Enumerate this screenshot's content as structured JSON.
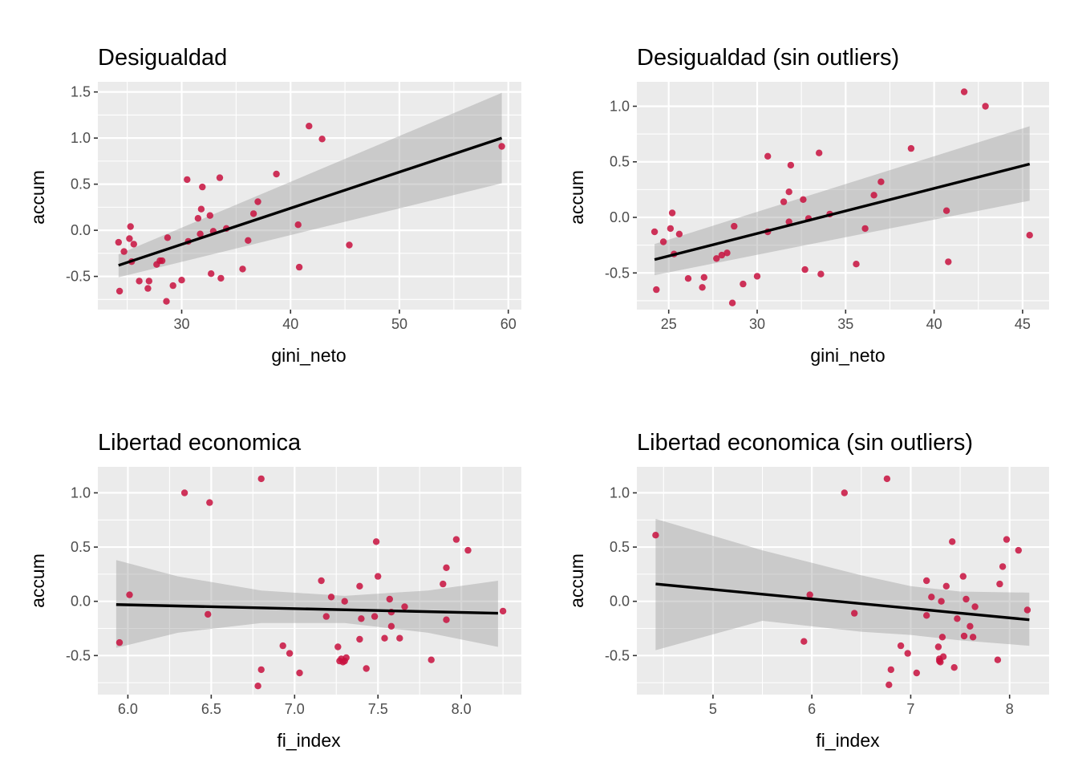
{
  "chart_data": [
    {
      "type": "scatter",
      "title": "Desigualdad",
      "xlabel": "gini_neto",
      "ylabel": "accum",
      "xlim": [
        22.3,
        61.2
      ],
      "ylim": [
        -0.86,
        1.61
      ],
      "x_ticks": [
        30,
        40,
        50,
        60
      ],
      "x_tick_labels": [
        "30",
        "40",
        "50",
        "60"
      ],
      "y_ticks": [
        -0.5,
        0.0,
        0.5,
        1.0,
        1.5
      ],
      "y_tick_labels": [
        "-0.5",
        "0.0",
        "0.5",
        "1.0",
        "1.5"
      ],
      "grid": true,
      "point_color": "#c8103e",
      "points": {
        "x": [
          24.3,
          24.2,
          24.7,
          25.2,
          25.3,
          25.4,
          25.6,
          26.1,
          26.9,
          27.0,
          27.7,
          28.0,
          28.2,
          28.6,
          28.7,
          29.2,
          30.0,
          30.5,
          30.6,
          31.5,
          31.8,
          31.9,
          31.7,
          32.6,
          32.7,
          32.9,
          33.5,
          33.6,
          34.1,
          35.6,
          36.1,
          36.6,
          37.0,
          38.7,
          40.7,
          40.8,
          41.7,
          42.9,
          45.4,
          59.4
        ],
        "y": [
          -0.66,
          -0.13,
          -0.23,
          -0.09,
          0.04,
          -0.34,
          -0.15,
          -0.55,
          -0.63,
          -0.55,
          -0.37,
          -0.33,
          -0.33,
          -0.77,
          -0.08,
          -0.6,
          -0.54,
          0.55,
          -0.12,
          0.13,
          0.23,
          0.47,
          -0.04,
          0.16,
          -0.47,
          -0.01,
          0.57,
          -0.52,
          0.02,
          -0.42,
          -0.11,
          0.18,
          0.31,
          0.61,
          0.06,
          -0.4,
          1.13,
          0.99,
          -0.16,
          0.91
        ]
      },
      "fit": {
        "x": [
          24.2,
          59.4
        ],
        "y": [
          -0.38,
          1.0
        ]
      },
      "band": {
        "x": [
          24.2,
          59.4
        ],
        "upper": [
          -0.26,
          1.49
        ],
        "lower": [
          -0.51,
          0.51
        ]
      }
    },
    {
      "type": "scatter",
      "title": "Desigualdad (sin outliers)",
      "xlabel": "gini_neto",
      "ylabel": "accum",
      "xlim": [
        23.2,
        46.5
      ],
      "ylim": [
        -0.83,
        1.22
      ],
      "x_ticks": [
        25,
        30,
        35,
        40,
        45
      ],
      "x_tick_labels": [
        "25",
        "30",
        "35",
        "40",
        "45"
      ],
      "y_ticks": [
        -0.5,
        0.0,
        0.5,
        1.0
      ],
      "y_tick_labels": [
        "-0.5",
        "0.0",
        "0.5",
        "1.0"
      ],
      "grid": true,
      "point_color": "#c8103e",
      "points": {
        "x": [
          24.3,
          24.2,
          24.7,
          25.1,
          25.2,
          25.3,
          25.6,
          26.1,
          26.9,
          27.0,
          27.7,
          28.0,
          28.3,
          28.6,
          28.7,
          29.2,
          30.0,
          30.6,
          30.6,
          31.5,
          31.8,
          31.9,
          31.8,
          32.6,
          32.7,
          32.9,
          33.5,
          33.6,
          34.1,
          35.6,
          36.1,
          36.6,
          37.0,
          38.7,
          40.7,
          40.8,
          41.7,
          42.9,
          45.4
        ],
        "y": [
          -0.65,
          -0.13,
          -0.22,
          -0.1,
          0.04,
          -0.33,
          -0.15,
          -0.55,
          -0.63,
          -0.54,
          -0.37,
          -0.34,
          -0.32,
          -0.77,
          -0.08,
          -0.6,
          -0.53,
          0.55,
          -0.13,
          0.14,
          0.23,
          0.47,
          -0.04,
          0.16,
          -0.47,
          -0.01,
          0.58,
          -0.51,
          0.03,
          -0.42,
          -0.1,
          0.2,
          0.32,
          0.62,
          0.06,
          -0.4,
          1.13,
          1.0,
          -0.16
        ]
      },
      "fit": {
        "x": [
          24.2,
          45.4
        ],
        "y": [
          -0.38,
          0.48
        ]
      },
      "band": {
        "x": [
          24.2,
          45.4
        ],
        "upper": [
          -0.24,
          0.82
        ],
        "lower": [
          -0.52,
          0.15
        ]
      }
    },
    {
      "type": "scatter",
      "title": "Libertad economica",
      "xlabel": "fi_index",
      "ylabel": "accum",
      "xlim": [
        5.82,
        8.36
      ],
      "ylim": [
        -0.86,
        1.24
      ],
      "x_ticks": [
        6.0,
        6.5,
        7.0,
        7.5,
        8.0
      ],
      "x_tick_labels": [
        "6.0",
        "6.5",
        "7.0",
        "7.5",
        "8.0"
      ],
      "y_ticks": [
        -0.5,
        0.0,
        0.5,
        1.0
      ],
      "y_tick_labels": [
        "-0.5",
        "0.0",
        "0.5",
        "1.0"
      ],
      "grid": true,
      "point_color": "#c8103e",
      "points": {
        "x": [
          5.95,
          6.01,
          6.34,
          6.48,
          6.49,
          6.78,
          6.8,
          6.8,
          6.93,
          6.97,
          7.03,
          7.16,
          7.19,
          7.22,
          7.26,
          7.27,
          7.28,
          7.29,
          7.3,
          7.3,
          7.31,
          7.39,
          7.4,
          7.39,
          7.43,
          7.48,
          7.49,
          7.5,
          7.54,
          7.57,
          7.58,
          7.58,
          7.63,
          7.66,
          7.82,
          7.89,
          7.91,
          7.91,
          7.97,
          8.04,
          8.25
        ],
        "y": [
          -0.38,
          0.06,
          1.0,
          -0.12,
          0.91,
          -0.78,
          -0.63,
          1.13,
          -0.41,
          -0.48,
          -0.66,
          0.19,
          -0.14,
          0.04,
          -0.42,
          -0.55,
          -0.53,
          -0.56,
          0.0,
          -0.55,
          -0.52,
          0.14,
          -0.16,
          -0.35,
          -0.62,
          -0.14,
          0.55,
          0.23,
          -0.34,
          0.02,
          -0.23,
          -0.1,
          -0.34,
          -0.05,
          -0.54,
          0.16,
          0.31,
          -0.17,
          0.57,
          0.47,
          -0.09
        ]
      },
      "fit": {
        "x": [
          5.93,
          8.22
        ],
        "y": [
          -0.03,
          -0.11
        ]
      },
      "band": {
        "x": [
          5.93,
          6.3,
          6.8,
          7.3,
          7.8,
          8.22
        ],
        "upper": [
          0.38,
          0.23,
          0.1,
          0.05,
          0.1,
          0.19
        ],
        "lower": [
          -0.43,
          -0.29,
          -0.2,
          -0.2,
          -0.29,
          -0.42
        ]
      }
    },
    {
      "type": "scatter",
      "title": "Libertad economica (sin outliers)",
      "xlabel": "fi_index",
      "ylabel": "accum",
      "xlim": [
        4.23,
        8.4
      ],
      "ylim": [
        -0.86,
        1.24
      ],
      "x_ticks": [
        5,
        6,
        7,
        8
      ],
      "x_tick_labels": [
        "5",
        "6",
        "7",
        "8"
      ],
      "y_ticks": [
        -0.5,
        0.0,
        0.5,
        1.0
      ],
      "y_tick_labels": [
        "-0.5",
        "0.0",
        "0.5",
        "1.0"
      ],
      "grid": true,
      "point_color": "#c8103e",
      "points": {
        "x": [
          4.42,
          5.92,
          5.98,
          6.33,
          6.43,
          6.76,
          6.78,
          6.8,
          6.9,
          6.97,
          7.06,
          7.16,
          7.16,
          7.21,
          7.28,
          7.29,
          7.29,
          7.3,
          7.31,
          7.32,
          7.33,
          7.36,
          7.42,
          7.44,
          7.47,
          7.53,
          7.54,
          7.56,
          7.6,
          7.63,
          7.65,
          7.88,
          7.9,
          7.93,
          7.97,
          8.09,
          8.18
        ],
        "y": [
          0.61,
          -0.37,
          0.06,
          1.0,
          -0.11,
          1.13,
          -0.77,
          -0.63,
          -0.41,
          -0.48,
          -0.66,
          0.19,
          -0.13,
          0.04,
          -0.42,
          -0.53,
          -0.55,
          -0.56,
          0.0,
          -0.33,
          -0.51,
          0.14,
          0.55,
          -0.61,
          -0.16,
          0.23,
          -0.32,
          0.02,
          -0.23,
          -0.33,
          -0.05,
          -0.54,
          0.16,
          0.32,
          0.57,
          0.47,
          -0.08
        ]
      },
      "fit": {
        "x": [
          4.42,
          8.2
        ],
        "y": [
          0.16,
          -0.17
        ]
      },
      "band": {
        "x": [
          4.42,
          5.5,
          6.5,
          7.0,
          7.5,
          8.2
        ],
        "upper": [
          0.76,
          0.47,
          0.24,
          0.14,
          0.09,
          0.08
        ],
        "lower": [
          -0.45,
          -0.18,
          -0.28,
          -0.31,
          -0.36,
          -0.41
        ]
      }
    }
  ]
}
